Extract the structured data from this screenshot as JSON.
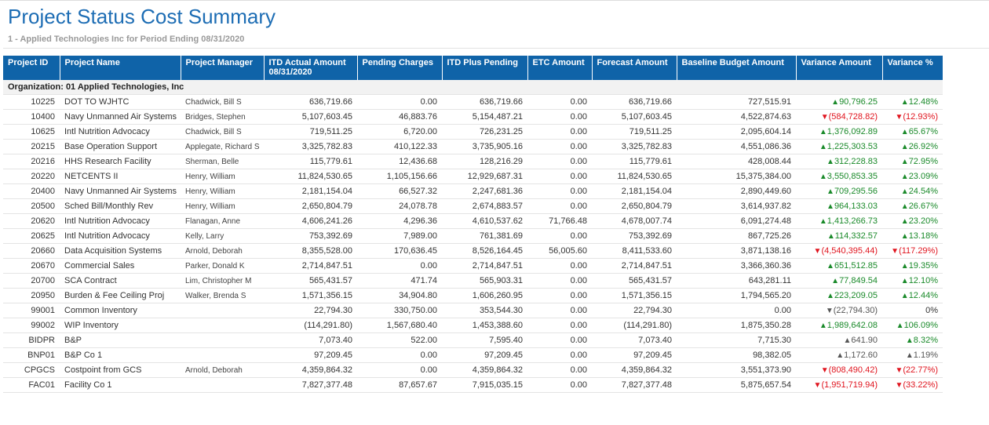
{
  "header": {
    "title": "Project Status Cost Summary",
    "subtitle": "1 - Applied Technologies Inc for Period Ending 08/31/2020"
  },
  "table": {
    "columns": [
      "Project ID",
      "Project Name",
      "Project Manager",
      "ITD Actual Amount 08/31/2020",
      "Pending Charges",
      "ITD Plus Pending",
      "ETC Amount",
      "Forecast Amount",
      "Baseline Budget Amount",
      "Variance Amount",
      "Variance %"
    ],
    "group": "Organization: 01 Applied Technologies, Inc",
    "rows": [
      [
        "10225",
        "DOT TO WJHTC",
        "Chadwick, Bill S",
        "636,719.66",
        "0.00",
        "636,719.66",
        "0.00",
        "636,719.66",
        "727,515.91",
        "90,796.25",
        "12.48%"
      ],
      [
        "10400",
        "Navy Unmanned Air Systems",
        "Bridges, Stephen",
        "5,107,603.45",
        "46,883.76",
        "5,154,487.21",
        "0.00",
        "5,107,603.45",
        "4,522,874.63",
        "(584,728.82)",
        "(12.93%)"
      ],
      [
        "10625",
        "Intl Nutrition Advocacy",
        "Chadwick, Bill S",
        "719,511.25",
        "6,720.00",
        "726,231.25",
        "0.00",
        "719,511.25",
        "2,095,604.14",
        "1,376,092.89",
        "65.67%"
      ],
      [
        "20215",
        "Base Operation Support",
        "Applegate, Richard S",
        "3,325,782.83",
        "410,122.33",
        "3,735,905.16",
        "0.00",
        "3,325,782.83",
        "4,551,086.36",
        "1,225,303.53",
        "26.92%"
      ],
      [
        "20216",
        "HHS Research Facility",
        "Sherman, Belle",
        "115,779.61",
        "12,436.68",
        "128,216.29",
        "0.00",
        "115,779.61",
        "428,008.44",
        "312,228.83",
        "72.95%"
      ],
      [
        "20220",
        "NETCENTS II",
        "Henry, William",
        "11,824,530.65",
        "1,105,156.66",
        "12,929,687.31",
        "0.00",
        "11,824,530.65",
        "15,375,384.00",
        "3,550,853.35",
        "23.09%"
      ],
      [
        "20400",
        "Navy Unmanned Air Systems",
        "Henry, William",
        "2,181,154.04",
        "66,527.32",
        "2,247,681.36",
        "0.00",
        "2,181,154.04",
        "2,890,449.60",
        "709,295.56",
        "24.54%"
      ],
      [
        "20500",
        "Sched Bill/Monthly Rev",
        "Henry, William",
        "2,650,804.79",
        "24,078.78",
        "2,674,883.57",
        "0.00",
        "2,650,804.79",
        "3,614,937.82",
        "964,133.03",
        "26.67%"
      ],
      [
        "20620",
        "Intl Nutrition Advocacy",
        "Flanagan, Anne",
        "4,606,241.26",
        "4,296.36",
        "4,610,537.62",
        "71,766.48",
        "4,678,007.74",
        "6,091,274.48",
        "1,413,266.73",
        "23.20%"
      ],
      [
        "20625",
        "Intl Nutrition Advocacy",
        "Kelly, Larry",
        "753,392.69",
        "7,989.00",
        "761,381.69",
        "0.00",
        "753,392.69",
        "867,725.26",
        "114,332.57",
        "13.18%"
      ],
      [
        "20660",
        "Data Acquisition Systems",
        "Arnold, Deborah",
        "8,355,528.00",
        "170,636.45",
        "8,526,164.45",
        "56,005.60",
        "8,411,533.60",
        "3,871,138.16",
        "(4,540,395.44)",
        "(117.29%)"
      ],
      [
        "20670",
        "Commercial Sales",
        "Parker, Donald K",
        "2,714,847.51",
        "0.00",
        "2,714,847.51",
        "0.00",
        "2,714,847.51",
        "3,366,360.36",
        "651,512.85",
        "19.35%"
      ],
      [
        "20700",
        "SCA Contract",
        "Lim, Christopher M",
        "565,431.57",
        "471.74",
        "565,903.31",
        "0.00",
        "565,431.57",
        "643,281.11",
        "77,849.54",
        "12.10%"
      ],
      [
        "20950",
        "Burden & Fee Ceiling Proj",
        "Walker, Brenda S",
        "1,571,356.15",
        "34,904.80",
        "1,606,260.95",
        "0.00",
        "1,571,356.15",
        "1,794,565.20",
        "223,209.05",
        "12.44%"
      ],
      [
        "99001",
        "Common Inventory",
        null,
        "22,794.30",
        "330,750.00",
        "353,544.30",
        "0.00",
        "22,794.30",
        "0.00",
        "(22,794.30)",
        "0%"
      ],
      [
        "99002",
        "WIP Inventory",
        null,
        "(114,291.80)",
        "1,567,680.40",
        "1,453,388.60",
        "0.00",
        "(114,291.80)",
        "1,875,350.28",
        "1,989,642.08",
        "106.09%"
      ],
      [
        "BIDPR",
        "B&P",
        null,
        "7,073.40",
        "522.00",
        "7,595.40",
        "0.00",
        "7,073.40",
        "7,715.30",
        "641.90",
        "8.32%"
      ],
      [
        "BNP01",
        "B&P Co 1",
        null,
        "97,209.45",
        "0.00",
        "97,209.45",
        "0.00",
        "97,209.45",
        "98,382.05",
        "1,172.60",
        "1.19%"
      ],
      [
        "CPGCS",
        "Costpoint from GCS",
        "Arnold, Deborah",
        "4,359,864.32",
        "0.00",
        "4,359,864.32",
        "0.00",
        "4,359,864.32",
        "3,551,373.90",
        "(808,490.42)",
        "(22.77%)"
      ],
      [
        "FAC01",
        "Facility Co 1",
        null,
        "7,827,377.48",
        "87,657.67",
        "7,915,035.15",
        "0.00",
        "7,827,377.48",
        "5,875,657.54",
        "(1,951,719.94)",
        "(33.22%)"
      ]
    ],
    "variance_colors": [
      [
        "#1a8a2a",
        "#1a8a2a"
      ],
      [
        "#e0141e",
        "#e0141e"
      ],
      [
        "#1a8a2a",
        "#1a8a2a"
      ],
      [
        "#1a8a2a",
        "#1a8a2a"
      ],
      [
        "#1a8a2a",
        "#1a8a2a"
      ],
      [
        "#1a8a2a",
        "#1a8a2a"
      ],
      [
        "#1a8a2a",
        "#1a8a2a"
      ],
      [
        "#1a8a2a",
        "#1a8a2a"
      ],
      [
        "#1a8a2a",
        "#1a8a2a"
      ],
      [
        "#1a8a2a",
        "#1a8a2a"
      ],
      [
        "#e0141e",
        "#e0141e"
      ],
      [
        "#1a8a2a",
        "#1a8a2a"
      ],
      [
        "#1a8a2a",
        "#1a8a2a"
      ],
      [
        "#1a8a2a",
        "#1a8a2a"
      ],
      [
        "#555555",
        "#333333"
      ],
      [
        "#1a8a2a",
        "#1a8a2a"
      ],
      [
        "#555555",
        "#1a8a2a"
      ],
      [
        "#555555",
        "#555555"
      ],
      [
        "#e0141e",
        "#e0141e"
      ],
      [
        "#e0141e",
        "#e0141e"
      ]
    ]
  }
}
